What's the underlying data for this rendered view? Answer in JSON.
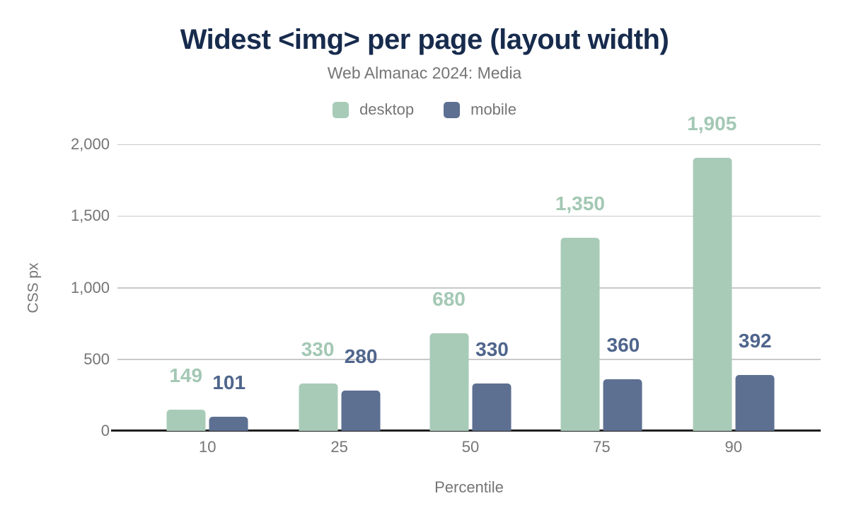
{
  "colors": {
    "desktop": "#a8cbb8",
    "mobile": "#5d7092",
    "desktop_label": "#a3c8b4",
    "mobile_label": "#4f658c",
    "title": "#172b4d",
    "muted_text": "#757575",
    "gridline": "#c9c9c9",
    "axis_line": "#1f1f1f"
  },
  "chart_data": {
    "type": "bar",
    "title": "Widest <img> per page (layout width)",
    "subtitle": "Web Almanac 2024: Media",
    "xlabel": "Percentile",
    "ylabel": "CSS px",
    "categories": [
      "10",
      "25",
      "50",
      "75",
      "90"
    ],
    "series": [
      {
        "name": "desktop",
        "values": [
          149,
          330,
          680,
          1350,
          1905
        ],
        "labels": [
          "149",
          "330",
          "680",
          "1,350",
          "1,905"
        ]
      },
      {
        "name": "mobile",
        "values": [
          101,
          280,
          330,
          360,
          392
        ],
        "labels": [
          "101",
          "280",
          "330",
          "360",
          "392"
        ]
      }
    ],
    "ylim": [
      0,
      2000
    ],
    "yticks": [
      "0",
      "500",
      "1,000",
      "1,500",
      "2,000"
    ],
    "grid": true,
    "legend_position": "top"
  }
}
